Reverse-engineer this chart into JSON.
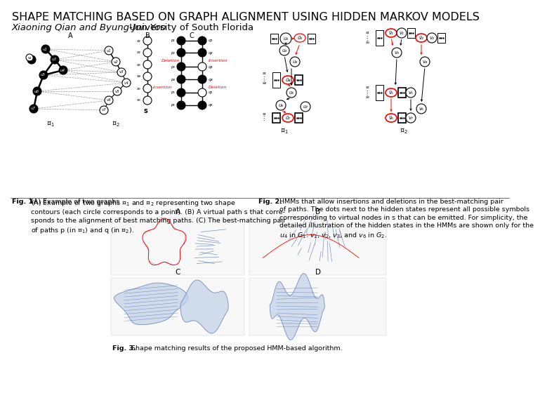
{
  "title": "SHAPE MATCHING BASED ON GRAPH ALIGNMENT USING HIDDEN MARKOV MODELS",
  "author_italic": "Xiaoning Qian and Byung-Jun Yoo",
  "author_normal": " University of South Florida",
  "fig1_caption_bold": "Fig. 1.",
  "fig1_caption_text": "  (A) Example of two graphs ᵊ₁ and ᵊ₂ representing two shape\ncontours (each circle corresponds to a point). (B) A virtual path s that corre-\nsponds to the alignment of best matching paths. (C) The best-matching pair\nof paths p (in ᵊ₁) and q (in ᵊ₂).",
  "fig2_caption_bold": "Fig. 2.",
  "fig2_caption_text": "  HMMs that allow insertions and deletions in the best-matching pair\nof paths. The dots next to the hidden states represent all possible symbols\ncorresponding to virtual nodes in s that can be emitted. For simplicity, the\ndetailed illustration of the hidden states in the HMMs are shown only for the\nu₄ in G₁: v₁, v₂, v₃, and v₆ in G₂.",
  "fig3_caption_bold": "Fig. 3.",
  "fig3_caption_text": "  Shape matching results of the proposed HMM-based algorithm.",
  "bg_color": "#ffffff",
  "title_fontsize": 11.5,
  "author_fontsize": 9.5,
  "caption_fontsize": 6.8,
  "label_fontsize": 7.5
}
